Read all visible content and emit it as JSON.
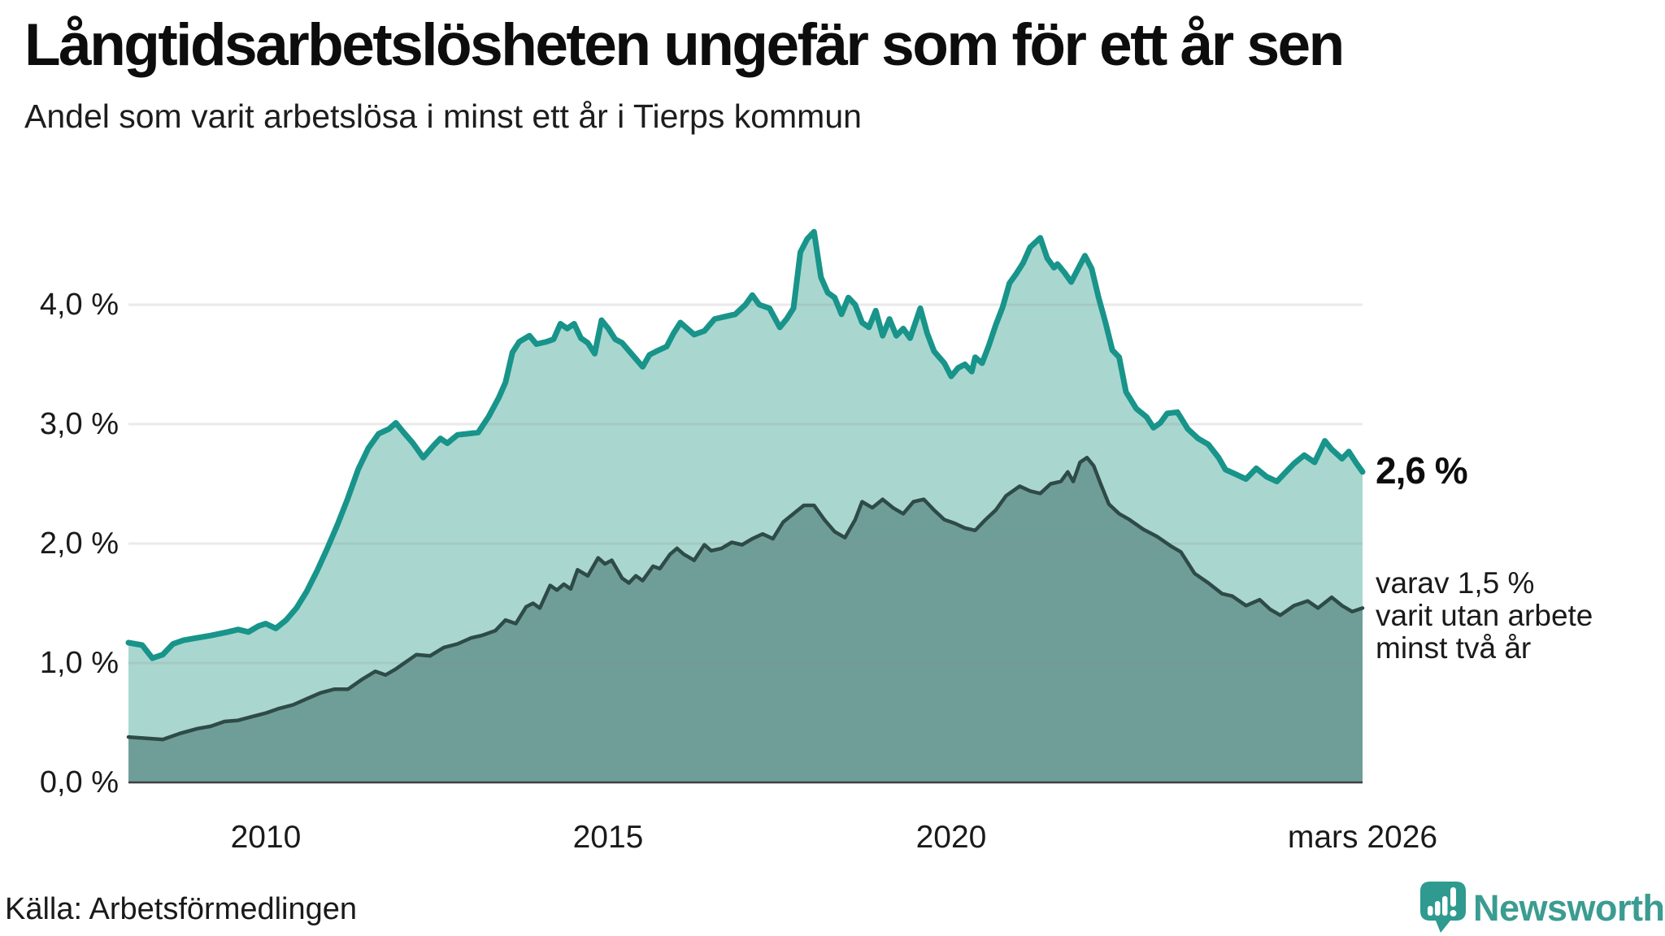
{
  "header": {
    "title": "Långtidsarbetslösheten ungefär som för ett år sen",
    "subtitle": "Andel som varit arbetslösa i minst ett år i Tierps kommun"
  },
  "source_line": "Källa: Arbetsförmedlingen",
  "branding": {
    "name": "Newsworthy",
    "bubble_color": "#2f9a8f",
    "text_color": "#3b9c91"
  },
  "annotations": {
    "latest_value_label": "2,6 %",
    "secondary_line1": "varav 1,5 %",
    "secondary_line2": "varit utan arbete",
    "secondary_line3": "minst två år"
  },
  "colors": {
    "series1_line": "#18948a",
    "series1_fill": "#a9d7cf",
    "series2_line": "#2e4b47",
    "series2_fill": "#6f9e99",
    "gridline": "#8a8a8a",
    "axis_baseline": "#3f3f3f",
    "text": "#1a1a1a"
  },
  "chart_data": {
    "type": "area",
    "title": "Långtidsarbetslösheten ungefär som för ett år sen",
    "subtitle": "Andel som varit arbetslösa i minst ett år i Tierps kommun",
    "unit": "%",
    "x_axis": {
      "range_years": [
        2008,
        2026.0
      ],
      "tick_labels": [
        "2010",
        "2015",
        "2020",
        "mars 2026"
      ],
      "tick_values": [
        2010,
        2015,
        2020,
        2026
      ]
    },
    "y_axis": {
      "range": [
        0,
        4.85
      ],
      "tick_labels": [
        "4,0 %",
        "3,0 %",
        "2,0 %",
        "1,0 %",
        "0,0 %"
      ],
      "tick_values": [
        4,
        3,
        2,
        1,
        0
      ],
      "grid": true
    },
    "legend_position": "none",
    "series": [
      {
        "name": "Andel arbetslösa minst ett år",
        "latest_value": 2.6,
        "latest_label": "2,6 %",
        "points": [
          [
            2008.0,
            1.17
          ],
          [
            2008.2,
            1.15
          ],
          [
            2008.35,
            1.04
          ],
          [
            2008.5,
            1.07
          ],
          [
            2008.65,
            1.16
          ],
          [
            2008.8,
            1.19
          ],
          [
            2009.0,
            1.21
          ],
          [
            2009.2,
            1.23
          ],
          [
            2009.45,
            1.26
          ],
          [
            2009.6,
            1.28
          ],
          [
            2009.75,
            1.26
          ],
          [
            2009.9,
            1.31
          ],
          [
            2010.0,
            1.33
          ],
          [
            2010.15,
            1.29
          ],
          [
            2010.3,
            1.36
          ],
          [
            2010.45,
            1.46
          ],
          [
            2010.6,
            1.6
          ],
          [
            2010.75,
            1.77
          ],
          [
            2010.9,
            1.96
          ],
          [
            2011.05,
            2.16
          ],
          [
            2011.2,
            2.38
          ],
          [
            2011.35,
            2.62
          ],
          [
            2011.5,
            2.8
          ],
          [
            2011.65,
            2.92
          ],
          [
            2011.8,
            2.96
          ],
          [
            2011.9,
            3.01
          ],
          [
            2012.0,
            2.94
          ],
          [
            2012.15,
            2.84
          ],
          [
            2012.3,
            2.72
          ],
          [
            2012.45,
            2.82
          ],
          [
            2012.55,
            2.88
          ],
          [
            2012.65,
            2.84
          ],
          [
            2012.8,
            2.91
          ],
          [
            2012.95,
            2.92
          ],
          [
            2013.1,
            2.93
          ],
          [
            2013.25,
            3.06
          ],
          [
            2013.4,
            3.22
          ],
          [
            2013.5,
            3.35
          ],
          [
            2013.6,
            3.6
          ],
          [
            2013.7,
            3.69
          ],
          [
            2013.85,
            3.74
          ],
          [
            2013.95,
            3.67
          ],
          [
            2014.1,
            3.69
          ],
          [
            2014.2,
            3.71
          ],
          [
            2014.3,
            3.84
          ],
          [
            2014.4,
            3.8
          ],
          [
            2014.5,
            3.84
          ],
          [
            2014.6,
            3.72
          ],
          [
            2014.7,
            3.68
          ],
          [
            2014.8,
            3.59
          ],
          [
            2014.9,
            3.87
          ],
          [
            2015.0,
            3.8
          ],
          [
            2015.1,
            3.71
          ],
          [
            2015.2,
            3.68
          ],
          [
            2015.35,
            3.58
          ],
          [
            2015.5,
            3.48
          ],
          [
            2015.6,
            3.58
          ],
          [
            2015.7,
            3.61
          ],
          [
            2015.85,
            3.65
          ],
          [
            2015.95,
            3.76
          ],
          [
            2016.05,
            3.85
          ],
          [
            2016.15,
            3.8
          ],
          [
            2016.25,
            3.75
          ],
          [
            2016.4,
            3.78
          ],
          [
            2016.55,
            3.88
          ],
          [
            2016.7,
            3.9
          ],
          [
            2016.85,
            3.92
          ],
          [
            2017.0,
            4.0
          ],
          [
            2017.1,
            4.08
          ],
          [
            2017.2,
            4.0
          ],
          [
            2017.35,
            3.97
          ],
          [
            2017.5,
            3.81
          ],
          [
            2017.6,
            3.88
          ],
          [
            2017.7,
            3.97
          ],
          [
            2017.8,
            4.44
          ],
          [
            2017.9,
            4.55
          ],
          [
            2018.0,
            4.61
          ],
          [
            2018.1,
            4.23
          ],
          [
            2018.2,
            4.1
          ],
          [
            2018.3,
            4.06
          ],
          [
            2018.4,
            3.92
          ],
          [
            2018.5,
            4.06
          ],
          [
            2018.6,
            4.0
          ],
          [
            2018.7,
            3.85
          ],
          [
            2018.8,
            3.81
          ],
          [
            2018.9,
            3.95
          ],
          [
            2019.0,
            3.74
          ],
          [
            2019.1,
            3.88
          ],
          [
            2019.2,
            3.74
          ],
          [
            2019.3,
            3.8
          ],
          [
            2019.4,
            3.72
          ],
          [
            2019.55,
            3.97
          ],
          [
            2019.65,
            3.76
          ],
          [
            2019.75,
            3.61
          ],
          [
            2019.9,
            3.51
          ],
          [
            2020.0,
            3.4
          ],
          [
            2020.1,
            3.47
          ],
          [
            2020.2,
            3.5
          ],
          [
            2020.3,
            3.44
          ],
          [
            2020.35,
            3.56
          ],
          [
            2020.45,
            3.51
          ],
          [
            2020.55,
            3.66
          ],
          [
            2020.65,
            3.83
          ],
          [
            2020.75,
            3.98
          ],
          [
            2020.85,
            4.18
          ],
          [
            2020.95,
            4.26
          ],
          [
            2021.05,
            4.35
          ],
          [
            2021.15,
            4.48
          ],
          [
            2021.3,
            4.56
          ],
          [
            2021.4,
            4.39
          ],
          [
            2021.5,
            4.31
          ],
          [
            2021.55,
            4.34
          ],
          [
            2021.65,
            4.27
          ],
          [
            2021.75,
            4.19
          ],
          [
            2021.85,
            4.3
          ],
          [
            2021.95,
            4.41
          ],
          [
            2022.05,
            4.3
          ],
          [
            2022.15,
            4.06
          ],
          [
            2022.25,
            3.85
          ],
          [
            2022.35,
            3.62
          ],
          [
            2022.45,
            3.56
          ],
          [
            2022.55,
            3.27
          ],
          [
            2022.7,
            3.13
          ],
          [
            2022.85,
            3.06
          ],
          [
            2022.95,
            2.97
          ],
          [
            2023.05,
            3.01
          ],
          [
            2023.15,
            3.09
          ],
          [
            2023.3,
            3.1
          ],
          [
            2023.45,
            2.96
          ],
          [
            2023.6,
            2.88
          ],
          [
            2023.75,
            2.83
          ],
          [
            2023.9,
            2.72
          ],
          [
            2024.0,
            2.62
          ],
          [
            2024.15,
            2.58
          ],
          [
            2024.3,
            2.54
          ],
          [
            2024.45,
            2.63
          ],
          [
            2024.6,
            2.56
          ],
          [
            2024.75,
            2.52
          ],
          [
            2024.9,
            2.61
          ],
          [
            2025.0,
            2.67
          ],
          [
            2025.15,
            2.74
          ],
          [
            2025.3,
            2.68
          ],
          [
            2025.45,
            2.86
          ],
          [
            2025.55,
            2.79
          ],
          [
            2025.7,
            2.71
          ],
          [
            2025.8,
            2.77
          ],
          [
            2025.9,
            2.68
          ],
          [
            2026.0,
            2.6
          ]
        ]
      },
      {
        "name": "varav arbetslösa minst två år",
        "latest_value": 1.5,
        "latest_label": "varav 1,5 % varit utan arbete minst två år",
        "points": [
          [
            2008.0,
            0.38
          ],
          [
            2008.25,
            0.37
          ],
          [
            2008.5,
            0.36
          ],
          [
            2008.75,
            0.41
          ],
          [
            2009.0,
            0.45
          ],
          [
            2009.2,
            0.47
          ],
          [
            2009.4,
            0.51
          ],
          [
            2009.6,
            0.52
          ],
          [
            2009.8,
            0.55
          ],
          [
            2010.0,
            0.58
          ],
          [
            2010.2,
            0.62
          ],
          [
            2010.4,
            0.65
          ],
          [
            2010.6,
            0.7
          ],
          [
            2010.8,
            0.75
          ],
          [
            2011.0,
            0.78
          ],
          [
            2011.2,
            0.78
          ],
          [
            2011.4,
            0.86
          ],
          [
            2011.6,
            0.93
          ],
          [
            2011.75,
            0.9
          ],
          [
            2011.9,
            0.95
          ],
          [
            2012.0,
            0.99
          ],
          [
            2012.2,
            1.07
          ],
          [
            2012.4,
            1.06
          ],
          [
            2012.6,
            1.13
          ],
          [
            2012.8,
            1.16
          ],
          [
            2013.0,
            1.21
          ],
          [
            2013.15,
            1.23
          ],
          [
            2013.35,
            1.27
          ],
          [
            2013.5,
            1.36
          ],
          [
            2013.65,
            1.33
          ],
          [
            2013.8,
            1.47
          ],
          [
            2013.9,
            1.5
          ],
          [
            2014.0,
            1.46
          ],
          [
            2014.15,
            1.65
          ],
          [
            2014.25,
            1.61
          ],
          [
            2014.35,
            1.66
          ],
          [
            2014.45,
            1.62
          ],
          [
            2014.55,
            1.78
          ],
          [
            2014.7,
            1.73
          ],
          [
            2014.85,
            1.88
          ],
          [
            2014.95,
            1.83
          ],
          [
            2015.05,
            1.86
          ],
          [
            2015.2,
            1.71
          ],
          [
            2015.3,
            1.67
          ],
          [
            2015.4,
            1.73
          ],
          [
            2015.5,
            1.69
          ],
          [
            2015.65,
            1.81
          ],
          [
            2015.75,
            1.79
          ],
          [
            2015.9,
            1.91
          ],
          [
            2016.0,
            1.96
          ],
          [
            2016.1,
            1.91
          ],
          [
            2016.25,
            1.86
          ],
          [
            2016.4,
            1.99
          ],
          [
            2016.5,
            1.94
          ],
          [
            2016.65,
            1.96
          ],
          [
            2016.8,
            2.01
          ],
          [
            2016.95,
            1.99
          ],
          [
            2017.1,
            2.04
          ],
          [
            2017.25,
            2.08
          ],
          [
            2017.4,
            2.04
          ],
          [
            2017.55,
            2.18
          ],
          [
            2017.7,
            2.25
          ],
          [
            2017.85,
            2.32
          ],
          [
            2018.0,
            2.32
          ],
          [
            2018.15,
            2.2
          ],
          [
            2018.3,
            2.1
          ],
          [
            2018.45,
            2.05
          ],
          [
            2018.6,
            2.2
          ],
          [
            2018.7,
            2.35
          ],
          [
            2018.85,
            2.3
          ],
          [
            2019.0,
            2.37
          ],
          [
            2019.15,
            2.3
          ],
          [
            2019.3,
            2.25
          ],
          [
            2019.45,
            2.35
          ],
          [
            2019.6,
            2.37
          ],
          [
            2019.75,
            2.28
          ],
          [
            2019.9,
            2.2
          ],
          [
            2020.05,
            2.17
          ],
          [
            2020.2,
            2.13
          ],
          [
            2020.35,
            2.11
          ],
          [
            2020.5,
            2.2
          ],
          [
            2020.65,
            2.28
          ],
          [
            2020.8,
            2.4
          ],
          [
            2021.0,
            2.48
          ],
          [
            2021.15,
            2.44
          ],
          [
            2021.3,
            2.42
          ],
          [
            2021.45,
            2.5
          ],
          [
            2021.6,
            2.52
          ],
          [
            2021.7,
            2.6
          ],
          [
            2021.78,
            2.52
          ],
          [
            2021.88,
            2.68
          ],
          [
            2021.98,
            2.72
          ],
          [
            2022.08,
            2.65
          ],
          [
            2022.18,
            2.5
          ],
          [
            2022.3,
            2.33
          ],
          [
            2022.45,
            2.25
          ],
          [
            2022.6,
            2.2
          ],
          [
            2022.8,
            2.12
          ],
          [
            2023.0,
            2.06
          ],
          [
            2023.2,
            1.98
          ],
          [
            2023.35,
            1.93
          ],
          [
            2023.55,
            1.75
          ],
          [
            2023.75,
            1.67
          ],
          [
            2023.95,
            1.58
          ],
          [
            2024.1,
            1.56
          ],
          [
            2024.3,
            1.48
          ],
          [
            2024.5,
            1.53
          ],
          [
            2024.65,
            1.45
          ],
          [
            2024.8,
            1.4
          ],
          [
            2025.0,
            1.48
          ],
          [
            2025.2,
            1.52
          ],
          [
            2025.35,
            1.46
          ],
          [
            2025.55,
            1.55
          ],
          [
            2025.7,
            1.48
          ],
          [
            2025.85,
            1.43
          ],
          [
            2026.0,
            1.46
          ]
        ]
      }
    ]
  }
}
